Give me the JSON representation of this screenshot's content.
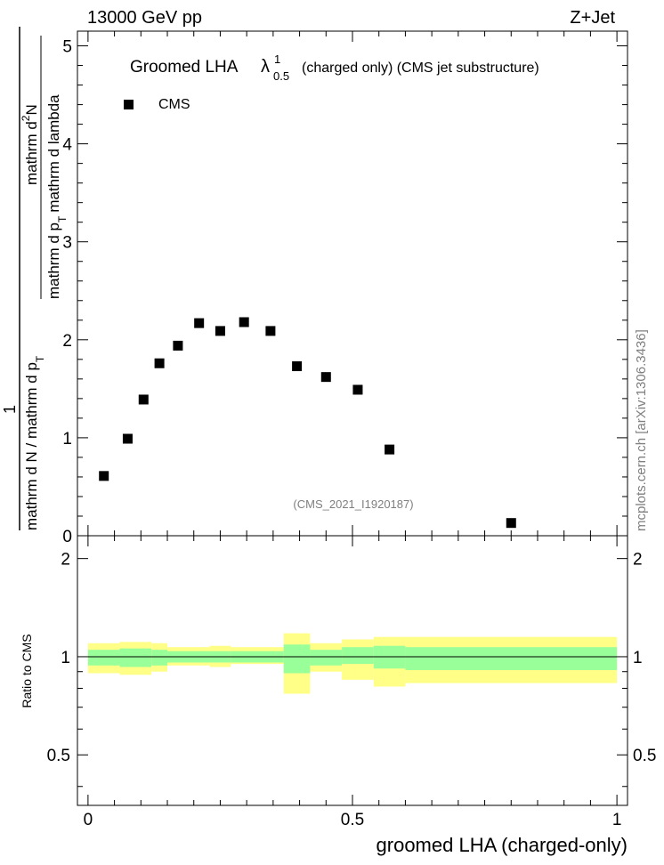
{
  "header": {
    "left": "13000 GeV pp",
    "right": "Z+Jet"
  },
  "side_text": "mcplots.cern.ch [arXiv:1306.3436]",
  "ids_label": "(CMS_2021_I1920187)",
  "chart_data": [
    {
      "type": "scatter",
      "panel": "main",
      "title_main": "Groomed LHA",
      "title_symbol": "λ",
      "title_sup": "1",
      "title_sub": "0.5",
      "title_rest": "(charged only) (CMS jet substructure)",
      "ylabel_numerator": "1",
      "ylabel_denominator": "mathrm d N / mathrm d p",
      "ylabel_denominator_sub": "T",
      "ylabel_numerator2": "mathrm d",
      "ylabel_numerator2_sup": "2",
      "ylabel_numerator2_rest": "N",
      "ylabel_denom2": "mathrm d p",
      "ylabel_denom2_sub": "T",
      "ylabel_denom2_rest": "mathrm d lambda",
      "legend": [
        {
          "label": "CMS",
          "marker": "square",
          "color": "#000000"
        }
      ],
      "xlim": [
        -0.02,
        1.02
      ],
      "ylim": [
        0,
        5.15
      ],
      "yticks": [
        0,
        1,
        2,
        3,
        4,
        5
      ],
      "ytick_labels": [
        "0",
        "1",
        "2",
        "3",
        "4",
        "5"
      ],
      "series": [
        {
          "name": "CMS",
          "x": [
            0.03,
            0.075,
            0.105,
            0.135,
            0.17,
            0.21,
            0.25,
            0.295,
            0.345,
            0.395,
            0.45,
            0.51,
            0.57,
            0.8
          ],
          "y": [
            0.61,
            0.99,
            1.39,
            1.76,
            1.94,
            2.17,
            2.09,
            2.18,
            2.09,
            1.73,
            1.62,
            1.49,
            0.88,
            0.13
          ]
        }
      ]
    },
    {
      "type": "area",
      "panel": "ratio",
      "ylabel": "Ratio to CMS",
      "xlabel": "groomed LHA (charged-only)",
      "xlim": [
        -0.02,
        1.02
      ],
      "ylim": [
        0.35,
        2.35
      ],
      "yticks": [
        0.5,
        1,
        2
      ],
      "ytick_labels": [
        "0.5",
        "1",
        "2"
      ],
      "xticks": [
        0,
        0.5,
        1
      ],
      "xtick_labels": [
        "0",
        "0.5",
        "1"
      ],
      "reference": 1,
      "bins": [
        0,
        0.06,
        0.12,
        0.15,
        0.23,
        0.27,
        0.37,
        0.42,
        0.48,
        0.54,
        0.6,
        1.0
      ],
      "inner_band": {
        "color": "#99ff99",
        "low": [
          0.94,
          0.93,
          0.94,
          0.96,
          0.96,
          0.96,
          0.89,
          0.94,
          0.95,
          0.92,
          0.91
        ],
        "high": [
          1.05,
          1.06,
          1.05,
          1.04,
          1.04,
          1.04,
          1.09,
          1.05,
          1.07,
          1.08,
          1.07
        ]
      },
      "outer_band": {
        "color": "#ffff88",
        "low": [
          0.89,
          0.88,
          0.9,
          0.94,
          0.93,
          0.95,
          0.77,
          0.9,
          0.85,
          0.81,
          0.83
        ],
        "high": [
          1.1,
          1.11,
          1.1,
          1.07,
          1.08,
          1.07,
          1.18,
          1.1,
          1.13,
          1.15,
          1.15
        ]
      }
    }
  ]
}
